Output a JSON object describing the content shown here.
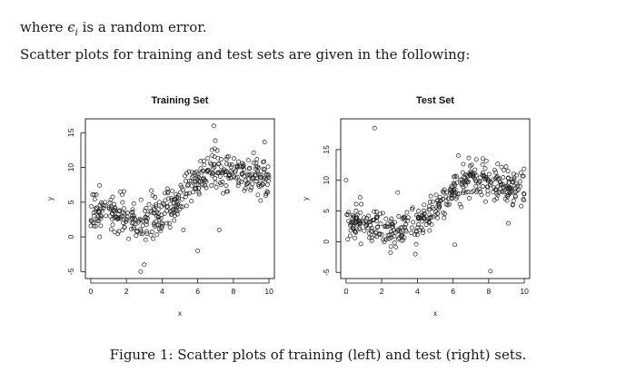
{
  "text": {
    "line1_before": "where",
    "line1_symbol": "ϵ",
    "line1_sub": "i",
    "line1_after": "is a random error.",
    "line2": "Scatter plots for training and test sets are given in the following:",
    "caption": "Figure 1: Scatter plots of training (left) and test (right) sets."
  },
  "chart_data": [
    {
      "type": "scatter",
      "title": "Training Set",
      "xlabel": "x",
      "ylabel": "y",
      "xlim": [
        -0.3,
        10.3
      ],
      "ylim": [
        -6,
        17
      ],
      "xticks": [
        "0",
        "2",
        "4",
        "6",
        "8",
        "10"
      ],
      "yticks": [
        "-5",
        "0",
        "5",
        "10",
        "15"
      ],
      "marker": "open-circle",
      "trend_approx": {
        "x": [
          0,
          1,
          2,
          3,
          4,
          5,
          6,
          7,
          8,
          9,
          10
        ],
        "y": [
          3.5,
          3.7,
          2.8,
          2.0,
          3.2,
          5.5,
          8.0,
          10.0,
          9.6,
          8.6,
          8.6
        ]
      },
      "outliers": [
        [
          6.9,
          16.0
        ],
        [
          3.0,
          -4.0
        ],
        [
          2.8,
          -5.0
        ],
        [
          6.0,
          -2.0
        ],
        [
          7.2,
          1.0
        ],
        [
          0.5,
          0.0
        ],
        [
          5.2,
          1.0
        ]
      ]
    },
    {
      "type": "scatter",
      "title": "Test Set",
      "xlabel": "x",
      "ylabel": "y",
      "xlim": [
        -0.3,
        10.3
      ],
      "ylim": [
        -6,
        20
      ],
      "xticks": [
        "0",
        "2",
        "4",
        "6",
        "8",
        "10"
      ],
      "yticks": [
        "-5",
        "0",
        "5",
        "10",
        "15"
      ],
      "marker": "open-circle",
      "trend_approx": {
        "x": [
          0,
          1,
          2,
          3,
          4,
          5,
          6,
          7,
          8,
          9,
          10
        ],
        "y": [
          3.2,
          3.4,
          2.4,
          2.0,
          3.0,
          5.2,
          8.2,
          10.5,
          9.8,
          9.0,
          8.8
        ]
      },
      "outliers": [
        [
          1.6,
          18.5
        ],
        [
          8.1,
          -4.8
        ],
        [
          6.1,
          -0.5
        ],
        [
          0.0,
          10.0
        ],
        [
          2.9,
          8.0
        ],
        [
          6.3,
          14.0
        ],
        [
          9.1,
          3.0
        ]
      ]
    }
  ]
}
